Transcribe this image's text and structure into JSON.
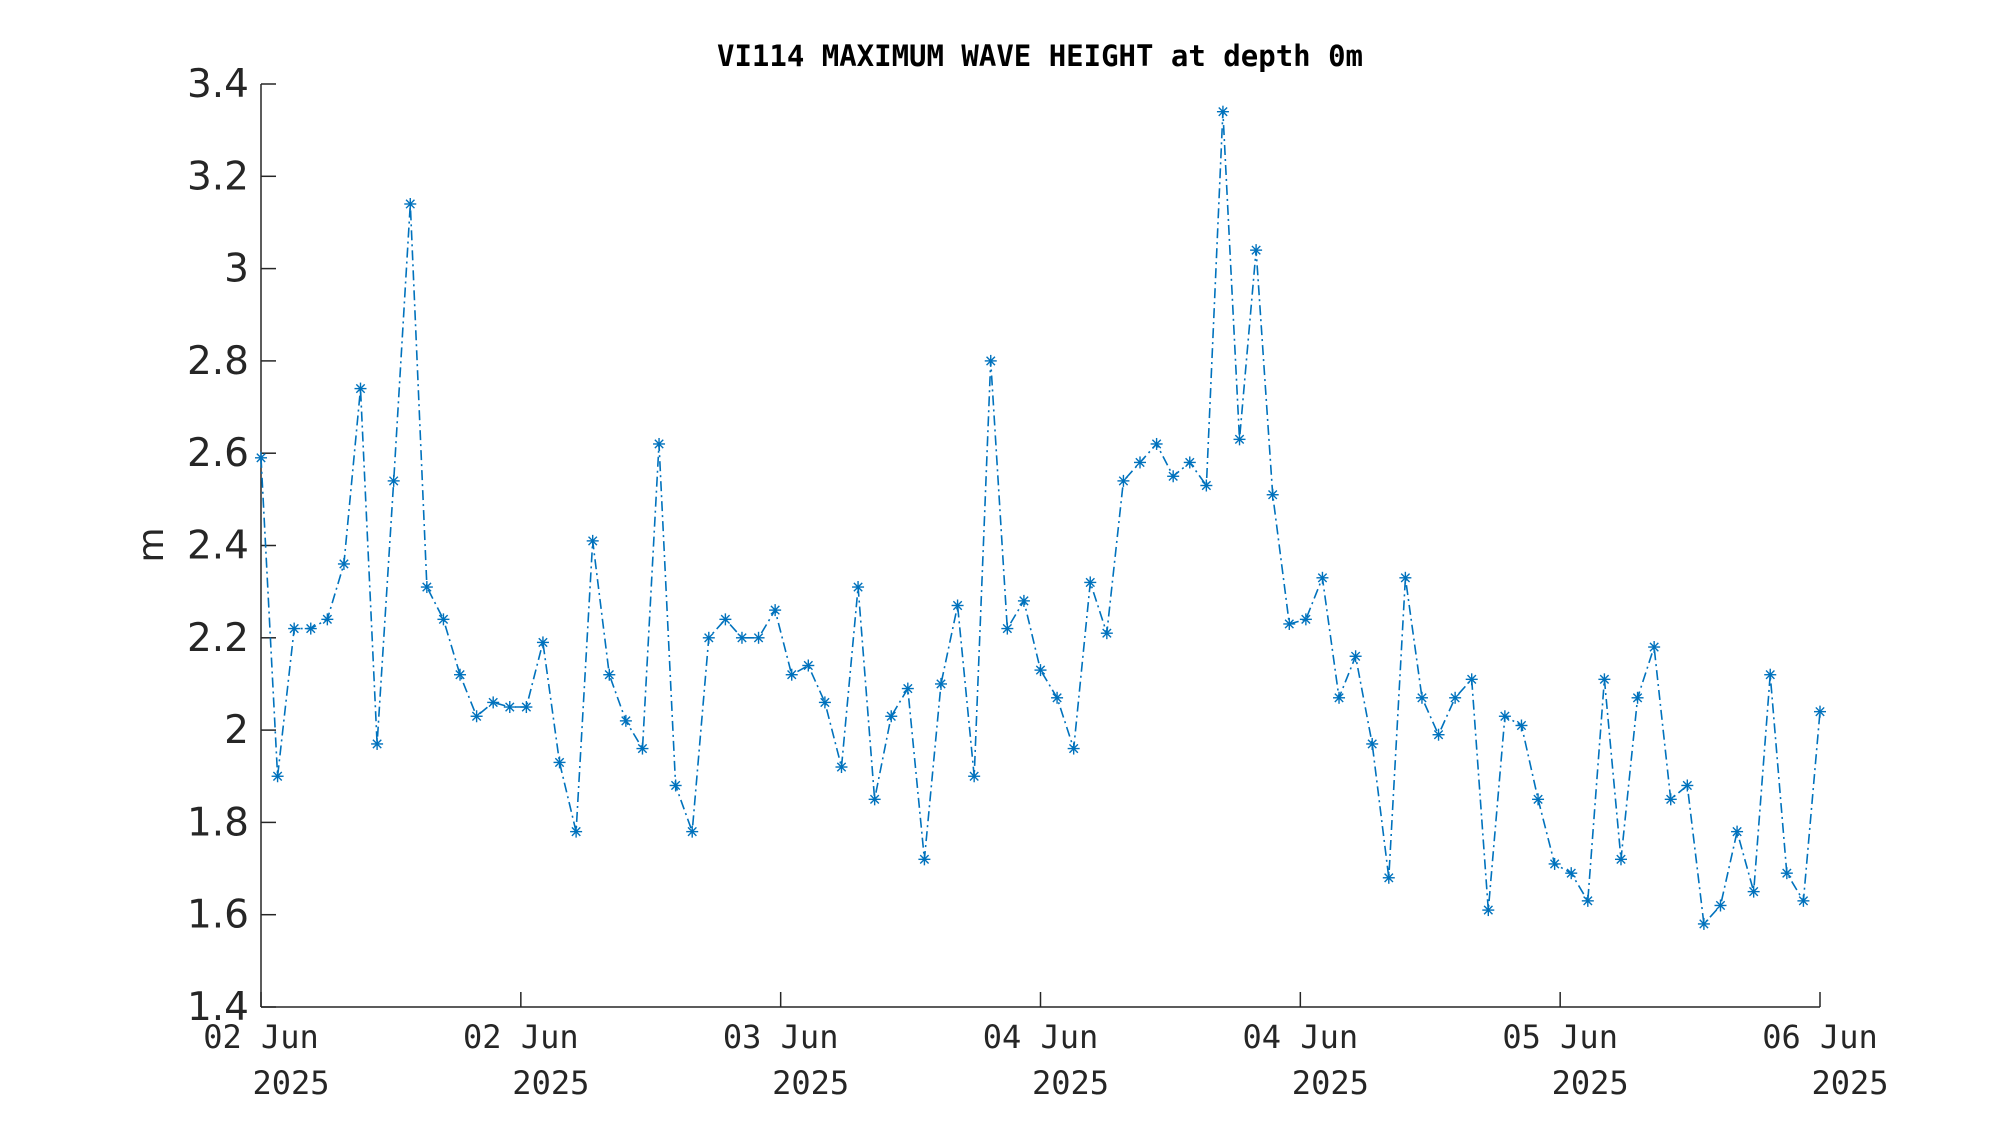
{
  "chart_data": {
    "type": "line",
    "title": "VI114 MAXIMUM WAVE HEIGHT at depth 0m",
    "xlabel": "",
    "ylabel": "m",
    "ylim": [
      1.4,
      3.4
    ],
    "yticks": [
      "1.4",
      "1.6",
      "1.8",
      "2",
      "2.2",
      "2.4",
      "2.6",
      "2.8",
      "3",
      "3.2",
      "3.4"
    ],
    "xticks": [
      {
        "line1": "02 Jun",
        "line2": "2025"
      },
      {
        "line1": "02 Jun",
        "line2": "2025"
      },
      {
        "line1": "03 Jun",
        "line2": "2025"
      },
      {
        "line1": "04 Jun",
        "line2": "2025"
      },
      {
        "line1": "04 Jun",
        "line2": "2025"
      },
      {
        "line1": "05 Jun",
        "line2": "2025"
      },
      {
        "line1": "06 Jun",
        "line2": "2025"
      }
    ],
    "grid": false,
    "line_style": "dash-dot",
    "marker": "asterisk",
    "series_color": "#0072BD",
    "series": [
      {
        "values": [
          2.59,
          1.9,
          2.22,
          2.22,
          2.24,
          2.36,
          2.74,
          1.97,
          2.54,
          3.14,
          2.31,
          2.24,
          2.12,
          2.03,
          2.06,
          2.05,
          2.05,
          2.19,
          1.93,
          1.78,
          2.41,
          2.12,
          2.02,
          1.96,
          2.62,
          1.88,
          1.78,
          2.2,
          2.24,
          2.2,
          2.2,
          2.26,
          2.12,
          2.14,
          2.06,
          1.92,
          2.31,
          1.85,
          2.03,
          2.09,
          1.72,
          2.1,
          2.27,
          1.9,
          2.8,
          2.22,
          2.28,
          2.13,
          2.07,
          1.96,
          2.32,
          2.21,
          2.54,
          2.58,
          2.62,
          2.55,
          2.58,
          2.53,
          3.34,
          2.63,
          3.04,
          2.51,
          2.23,
          2.24,
          2.33,
          2.07,
          2.16,
          1.97,
          1.68,
          2.33,
          2.07,
          1.99,
          2.07,
          2.11,
          1.61,
          2.03,
          2.01,
          1.85,
          1.71,
          1.69,
          1.63,
          2.11,
          1.72,
          2.07,
          2.18,
          1.85,
          1.88,
          1.58,
          1.62,
          1.78,
          1.65,
          2.12,
          1.69,
          1.63,
          2.04
        ]
      }
    ]
  }
}
